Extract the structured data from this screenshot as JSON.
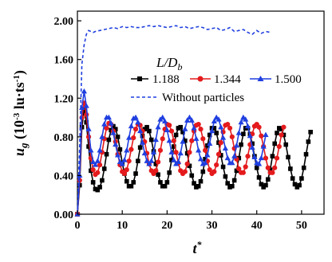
{
  "chart_data": {
    "type": "line",
    "xlabel": "t",
    "xlabel_sup": "*",
    "ylabel_main": "u",
    "ylabel_sub": "g",
    "ylabel_unit_open": " (10",
    "ylabel_unit_exp1": "-3",
    "ylabel_unit_mid": " lu·ts",
    "ylabel_unit_exp2": "-1",
    "ylabel_unit_close": ")",
    "xlim": [
      0,
      55
    ],
    "ylim": [
      0,
      2.1
    ],
    "xticks": [
      0,
      10,
      20,
      30,
      40,
      50
    ],
    "yticks": [
      0,
      0.4,
      0.8,
      1.2,
      1.6,
      2.0
    ],
    "xtick_labels": [
      "0",
      "10",
      "20",
      "30",
      "40",
      "50"
    ],
    "ytick_labels": [
      "0.00",
      "0.40",
      "0.80",
      "1.20",
      "1.60",
      "2.00"
    ],
    "legend_title_main": "L/D",
    "legend_title_sub": "b",
    "legend_placement": "top-right",
    "grid": false,
    "series": [
      {
        "name": "1.188",
        "color": "#000000",
        "marker": "square",
        "dash": "solid",
        "x": [
          0,
          0.5,
          1,
          1.5,
          2,
          2.5,
          3,
          3.5,
          4,
          4.5,
          5,
          5.5,
          6,
          6.5,
          7,
          7.5,
          8,
          8.5,
          9,
          9.5,
          10,
          10.5,
          11,
          11.5,
          12,
          12.5,
          13,
          13.5,
          14,
          14.5,
          15,
          15.5,
          16,
          16.5,
          17,
          17.5,
          18,
          18.5,
          19,
          19.5,
          20,
          20.5,
          21,
          21.5,
          22,
          22.5,
          23,
          23.5,
          24,
          24.5,
          25,
          25.5,
          26,
          26.5,
          27,
          27.5,
          28,
          28.5,
          29,
          29.5,
          30,
          30.5,
          31,
          31.5,
          32,
          32.5,
          33,
          33.5,
          34,
          34.5,
          35,
          35.5,
          36,
          36.5,
          37,
          37.5,
          38,
          38.5,
          39,
          39.5,
          40,
          40.5,
          41,
          41.5,
          42,
          42.5,
          43,
          43.5,
          44,
          44.5,
          45,
          45.5,
          46,
          46.5,
          47,
          47.5,
          48,
          48.5,
          49,
          49.5,
          50,
          50.5,
          51,
          51.5,
          52
        ],
        "y": [
          0.0,
          0.3,
          0.9,
          1.08,
          0.95,
          0.7,
          0.45,
          0.33,
          0.26,
          0.25,
          0.28,
          0.35,
          0.47,
          0.62,
          0.77,
          0.87,
          0.91,
          0.88,
          0.8,
          0.67,
          0.53,
          0.42,
          0.34,
          0.29,
          0.29,
          0.33,
          0.42,
          0.55,
          0.69,
          0.81,
          0.88,
          0.9,
          0.86,
          0.77,
          0.65,
          0.52,
          0.41,
          0.33,
          0.29,
          0.29,
          0.33,
          0.43,
          0.56,
          0.7,
          0.82,
          0.89,
          0.9,
          0.85,
          0.76,
          0.63,
          0.5,
          0.4,
          0.32,
          0.28,
          0.29,
          0.34,
          0.44,
          0.57,
          0.71,
          0.82,
          0.89,
          0.89,
          0.84,
          0.74,
          0.61,
          0.49,
          0.39,
          0.32,
          0.28,
          0.29,
          0.35,
          0.45,
          0.58,
          0.72,
          0.83,
          0.89,
          0.89,
          0.83,
          0.73,
          0.6,
          0.48,
          0.38,
          0.31,
          0.28,
          0.3,
          0.36,
          0.46,
          0.6,
          0.73,
          0.84,
          0.89,
          0.88,
          0.82,
          0.72,
          0.59,
          0.47,
          0.37,
          0.31,
          0.28,
          0.3,
          0.37,
          0.48,
          0.62,
          0.75,
          0.85
        ]
      },
      {
        "name": "1.344",
        "color": "#e41a1c",
        "marker": "circle",
        "dash": "solid",
        "x": [
          0,
          0.5,
          1,
          1.5,
          2,
          2.5,
          3,
          3.5,
          4,
          4.5,
          5,
          5.5,
          6,
          6.5,
          7,
          7.5,
          8,
          8.5,
          9,
          9.5,
          10,
          10.5,
          11,
          11.5,
          12,
          12.5,
          13,
          13.5,
          14,
          14.5,
          15,
          15.5,
          16,
          16.5,
          17,
          17.5,
          18,
          18.5,
          19,
          19.5,
          20,
          20.5,
          21,
          21.5,
          22,
          22.5,
          23,
          23.5,
          24,
          24.5,
          25,
          25.5,
          26,
          26.5,
          27,
          27.5,
          28,
          28.5,
          29,
          29.5,
          30,
          30.5,
          31,
          31.5,
          32,
          32.5,
          33,
          33.5,
          34,
          34.5,
          35,
          35.5,
          36,
          36.5,
          37,
          37.5,
          38,
          38.5,
          39,
          39.5,
          40,
          40.5,
          41,
          41.5,
          42,
          42.5,
          43,
          43.5,
          44,
          44.5,
          45,
          45.5,
          46
        ],
        "y": [
          0.0,
          0.35,
          1.0,
          1.15,
          1.03,
          0.8,
          0.58,
          0.46,
          0.41,
          0.43,
          0.51,
          0.64,
          0.78,
          0.89,
          0.94,
          0.93,
          0.86,
          0.75,
          0.62,
          0.51,
          0.44,
          0.42,
          0.46,
          0.55,
          0.67,
          0.79,
          0.88,
          0.93,
          0.92,
          0.86,
          0.75,
          0.63,
          0.52,
          0.45,
          0.42,
          0.45,
          0.54,
          0.66,
          0.78,
          0.88,
          0.93,
          0.92,
          0.86,
          0.76,
          0.64,
          0.53,
          0.45,
          0.42,
          0.44,
          0.52,
          0.64,
          0.76,
          0.86,
          0.92,
          0.93,
          0.88,
          0.78,
          0.66,
          0.55,
          0.46,
          0.42,
          0.44,
          0.51,
          0.62,
          0.74,
          0.85,
          0.92,
          0.93,
          0.89,
          0.8,
          0.68,
          0.57,
          0.47,
          0.43,
          0.43,
          0.49,
          0.6,
          0.72,
          0.83,
          0.91,
          0.93,
          0.9,
          0.81,
          0.7,
          0.58,
          0.48,
          0.43,
          0.43,
          0.48,
          0.58,
          0.7,
          0.82,
          0.9
        ]
      },
      {
        "name": "1.500",
        "color": "#1f3fe0",
        "marker": "triangle",
        "dash": "solid",
        "x": [
          0,
          0.5,
          1,
          1.5,
          2,
          2.5,
          3,
          3.5,
          4,
          4.5,
          5,
          5.5,
          6,
          6.5,
          7,
          7.5,
          8,
          8.5,
          9,
          9.5,
          10,
          10.5,
          11,
          11.5,
          12,
          12.5,
          13,
          13.5,
          14,
          14.5,
          15,
          15.5,
          16,
          16.5,
          17,
          17.5,
          18,
          18.5,
          19,
          19.5,
          20,
          20.5,
          21,
          21.5,
          22,
          22.5,
          23,
          23.5,
          24,
          24.5,
          25,
          25.5,
          26,
          26.5,
          27,
          27.5,
          28,
          28.5,
          29,
          29.5,
          30,
          30.5,
          31,
          31.5,
          32,
          32.5,
          33,
          33.5,
          34,
          34.5,
          35,
          35.5,
          36,
          36.5,
          37,
          37.5,
          38,
          38.5,
          39,
          39.5,
          40,
          40.5,
          41,
          41.5,
          42
        ],
        "y": [
          0.0,
          0.4,
          1.1,
          1.27,
          1.12,
          0.88,
          0.66,
          0.54,
          0.51,
          0.55,
          0.66,
          0.8,
          0.93,
          1.0,
          1.0,
          0.94,
          0.84,
          0.72,
          0.61,
          0.54,
          0.52,
          0.56,
          0.66,
          0.79,
          0.91,
          0.99,
          1.0,
          0.95,
          0.86,
          0.74,
          0.63,
          0.55,
          0.52,
          0.55,
          0.64,
          0.77,
          0.9,
          0.98,
          1.0,
          0.96,
          0.87,
          0.76,
          0.64,
          0.56,
          0.52,
          0.54,
          0.63,
          0.75,
          0.88,
          0.97,
          1.0,
          0.97,
          0.89,
          0.78,
          0.66,
          0.57,
          0.52,
          0.53,
          0.61,
          0.73,
          0.86,
          0.96,
          1.0,
          0.98,
          0.9,
          0.79,
          0.68,
          0.58,
          0.53,
          0.53,
          0.6,
          0.71,
          0.84,
          0.95,
          1.0,
          0.98,
          0.91,
          0.81,
          0.69,
          0.59,
          0.53,
          0.52,
          0.58,
          0.7,
          0.82
        ]
      },
      {
        "name": "Without particles",
        "color": "#1f3fe0",
        "marker": "none",
        "dash": "dashed",
        "x": [
          0,
          0.5,
          1,
          1.5,
          2,
          2.5,
          3,
          3.5,
          4,
          5,
          6,
          7,
          8,
          9,
          10,
          11,
          12,
          13,
          14,
          15,
          16,
          17,
          18,
          19,
          20,
          21,
          22,
          23,
          24,
          25,
          26,
          27,
          28,
          29,
          30,
          31,
          32,
          33,
          34,
          35,
          36,
          37,
          38,
          39,
          40,
          41,
          42,
          43
        ],
        "y": [
          0.0,
          0.7,
          1.55,
          1.75,
          1.86,
          1.9,
          1.89,
          1.88,
          1.89,
          1.9,
          1.91,
          1.92,
          1.93,
          1.92,
          1.94,
          1.93,
          1.94,
          1.93,
          1.93,
          1.94,
          1.95,
          1.94,
          1.95,
          1.94,
          1.93,
          1.94,
          1.95,
          1.93,
          1.94,
          1.92,
          1.93,
          1.94,
          1.93,
          1.91,
          1.92,
          1.93,
          1.9,
          1.91,
          1.93,
          1.89,
          1.9,
          1.91,
          1.88,
          1.86,
          1.9,
          1.87,
          1.89,
          1.88
        ]
      }
    ]
  }
}
